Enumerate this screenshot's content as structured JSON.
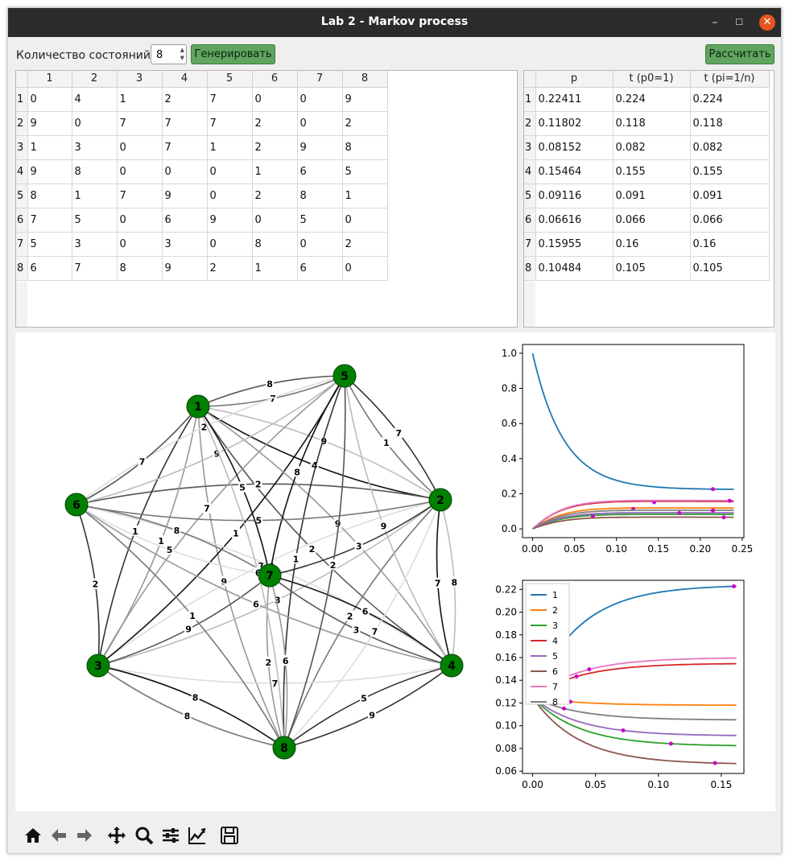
{
  "window": {
    "title": "Lab 2 - Markov process",
    "minimize": "–",
    "maximize": "☐",
    "close": "✕"
  },
  "controls": {
    "states_label": "Количество состояний",
    "states_value": "8",
    "generate_label": "Генерировать",
    "calculate_label": "Рассчитать"
  },
  "matrix": {
    "columns": [
      "1",
      "2",
      "3",
      "4",
      "5",
      "6",
      "7",
      "8"
    ],
    "row_headers": [
      "1",
      "2",
      "3",
      "4",
      "5",
      "6",
      "7",
      "8"
    ],
    "rows": [
      [
        "0",
        "4",
        "1",
        "2",
        "7",
        "0",
        "0",
        "9"
      ],
      [
        "9",
        "0",
        "7",
        "7",
        "7",
        "2",
        "0",
        "2"
      ],
      [
        "1",
        "3",
        "0",
        "7",
        "1",
        "2",
        "9",
        "8"
      ],
      [
        "9",
        "8",
        "0",
        "0",
        "0",
        "1",
        "6",
        "5"
      ],
      [
        "8",
        "1",
        "7",
        "9",
        "0",
        "2",
        "8",
        "1"
      ],
      [
        "7",
        "5",
        "0",
        "6",
        "9",
        "0",
        "5",
        "0"
      ],
      [
        "5",
        "3",
        "0",
        "3",
        "0",
        "8",
        "0",
        "2"
      ],
      [
        "6",
        "7",
        "8",
        "9",
        "2",
        "1",
        "6",
        "0"
      ]
    ]
  },
  "results": {
    "columns": [
      "p",
      "t (p0=1)",
      "t (pi=1/n)"
    ],
    "row_headers": [
      "1",
      "2",
      "3",
      "4",
      "5",
      "6",
      "7",
      "8"
    ],
    "rows": [
      [
        "0.22411",
        "0.224",
        "0.224"
      ],
      [
        "0.11802",
        "0.118",
        "0.118"
      ],
      [
        "0.08152",
        "0.082",
        "0.082"
      ],
      [
        "0.15464",
        "0.155",
        "0.155"
      ],
      [
        "0.09116",
        "0.091",
        "0.091"
      ],
      [
        "0.06616",
        "0.066",
        "0.066"
      ],
      [
        "0.15955",
        "0.16",
        "0.16"
      ],
      [
        "0.10484",
        "0.105",
        "0.105"
      ]
    ]
  },
  "graph": {
    "nodes": [
      "1",
      "2",
      "3",
      "4",
      "5",
      "6",
      "7",
      "8"
    ],
    "node_color": "#008000",
    "edges": [
      {
        "from": "1",
        "to": "2",
        "w": "4"
      },
      {
        "from": "1",
        "to": "3",
        "w": "1"
      },
      {
        "from": "1",
        "to": "4",
        "w": "2"
      },
      {
        "from": "1",
        "to": "5",
        "w": "7"
      },
      {
        "from": "1",
        "to": "8",
        "w": "9"
      },
      {
        "from": "2",
        "to": "1",
        "w": "9"
      },
      {
        "from": "2",
        "to": "3",
        "w": "7"
      },
      {
        "from": "2",
        "to": "4",
        "w": "7"
      },
      {
        "from": "2",
        "to": "5",
        "w": "7"
      },
      {
        "from": "2",
        "to": "6",
        "w": "2"
      },
      {
        "from": "2",
        "to": "8",
        "w": "2"
      },
      {
        "from": "3",
        "to": "1",
        "w": "1"
      },
      {
        "from": "3",
        "to": "2",
        "w": "3"
      },
      {
        "from": "3",
        "to": "4",
        "w": "7"
      },
      {
        "from": "3",
        "to": "5",
        "w": "1"
      },
      {
        "from": "3",
        "to": "6",
        "w": "2"
      },
      {
        "from": "3",
        "to": "7",
        "w": "9"
      },
      {
        "from": "3",
        "to": "8",
        "w": "8"
      },
      {
        "from": "4",
        "to": "1",
        "w": "9"
      },
      {
        "from": "4",
        "to": "2",
        "w": "8"
      },
      {
        "from": "4",
        "to": "6",
        "w": "1"
      },
      {
        "from": "4",
        "to": "7",
        "w": "6"
      },
      {
        "from": "4",
        "to": "8",
        "w": "5"
      },
      {
        "from": "5",
        "to": "1",
        "w": "8"
      },
      {
        "from": "5",
        "to": "2",
        "w": "1"
      },
      {
        "from": "5",
        "to": "3",
        "w": "7"
      },
      {
        "from": "5",
        "to": "4",
        "w": "9"
      },
      {
        "from": "5",
        "to": "6",
        "w": "2"
      },
      {
        "from": "5",
        "to": "7",
        "w": "8"
      },
      {
        "from": "5",
        "to": "8",
        "w": "1"
      },
      {
        "from": "6",
        "to": "1",
        "w": "7"
      },
      {
        "from": "6",
        "to": "2",
        "w": "5"
      },
      {
        "from": "6",
        "to": "4",
        "w": "6"
      },
      {
        "from": "6",
        "to": "5",
        "w": "9"
      },
      {
        "from": "6",
        "to": "7",
        "w": "5"
      },
      {
        "from": "7",
        "to": "1",
        "w": "5"
      },
      {
        "from": "7",
        "to": "2",
        "w": "3"
      },
      {
        "from": "7",
        "to": "4",
        "w": "3"
      },
      {
        "from": "7",
        "to": "6",
        "w": "8"
      },
      {
        "from": "7",
        "to": "8",
        "w": "2"
      },
      {
        "from": "8",
        "to": "1",
        "w": "6"
      },
      {
        "from": "8",
        "to": "2",
        "w": "7"
      },
      {
        "from": "8",
        "to": "3",
        "w": "8"
      },
      {
        "from": "8",
        "to": "4",
        "w": "9"
      },
      {
        "from": "8",
        "to": "5",
        "w": "2"
      },
      {
        "from": "8",
        "to": "6",
        "w": "1"
      },
      {
        "from": "8",
        "to": "7",
        "w": "6"
      }
    ]
  },
  "chart_data": [
    {
      "type": "line",
      "title": "",
      "xlim": [
        -0.012,
        0.252
      ],
      "ylim": [
        -0.05,
        1.05
      ],
      "xticks": [
        "0.00",
        "0.05",
        "0.10",
        "0.15",
        "0.20",
        "0.25"
      ],
      "yticks": [
        "0.0",
        "0.2",
        "0.4",
        "0.6",
        "0.8",
        "1.0"
      ],
      "rate": 27,
      "series": [
        {
          "label": "1",
          "color": "#1f77b4",
          "start": 1.0,
          "end": 0.224,
          "marker_x": 0.215
        },
        {
          "label": "2",
          "color": "#ff7f0e",
          "start": 0.0,
          "end": 0.118,
          "marker_x": 0.12
        },
        {
          "label": "3",
          "color": "#2ca02c",
          "start": 0.0,
          "end": 0.082,
          "marker_x": 0.072
        },
        {
          "label": "4",
          "color": "#d62728",
          "start": 0.0,
          "end": 0.155,
          "marker_x": 0.145
        },
        {
          "label": "5",
          "color": "#9467bd",
          "start": 0.0,
          "end": 0.091,
          "marker_x": 0.175
        },
        {
          "label": "6",
          "color": "#8c564b",
          "start": 0.0,
          "end": 0.066,
          "marker_x": 0.228
        },
        {
          "label": "7",
          "color": "#e377c2",
          "start": 0.0,
          "end": 0.16,
          "marker_x": 0.235
        },
        {
          "label": "8",
          "color": "#7f7f7f",
          "start": 0.0,
          "end": 0.105,
          "marker_x": 0.215
        }
      ]
    },
    {
      "type": "line",
      "title": "",
      "xlim": [
        -0.008,
        0.168
      ],
      "ylim": [
        0.058,
        0.228
      ],
      "xticks": [
        "0.00",
        "0.05",
        "0.10",
        "0.15"
      ],
      "yticks": [
        "0.06",
        "0.08",
        "0.10",
        "0.12",
        "0.14",
        "0.16",
        "0.18",
        "0.20",
        "0.22"
      ],
      "legend": "upper left",
      "rate": 27,
      "series": [
        {
          "label": "1",
          "color": "#1f77b4",
          "start": 0.125,
          "end": 0.224,
          "marker_x": 0.16
        },
        {
          "label": "2",
          "color": "#ff7f0e",
          "start": 0.125,
          "end": 0.118,
          "marker_x": 0.03
        },
        {
          "label": "3",
          "color": "#2ca02c",
          "start": 0.125,
          "end": 0.082,
          "marker_x": 0.11
        },
        {
          "label": "4",
          "color": "#d62728",
          "start": 0.125,
          "end": 0.155,
          "marker_x": 0.035
        },
        {
          "label": "5",
          "color": "#9467bd",
          "start": 0.125,
          "end": 0.091,
          "marker_x": 0.072
        },
        {
          "label": "6",
          "color": "#8c564b",
          "start": 0.125,
          "end": 0.066,
          "marker_x": 0.145
        },
        {
          "label": "7",
          "color": "#e377c2",
          "start": 0.125,
          "end": 0.16,
          "marker_x": 0.045
        },
        {
          "label": "8",
          "color": "#7f7f7f",
          "start": 0.125,
          "end": 0.105,
          "marker_x": 0.025
        }
      ]
    }
  ],
  "toolbar": [
    "home-icon",
    "back-icon",
    "forward-icon",
    "pan-icon",
    "zoom-icon",
    "configure-icon",
    "edit-curves-icon",
    "save-icon"
  ]
}
